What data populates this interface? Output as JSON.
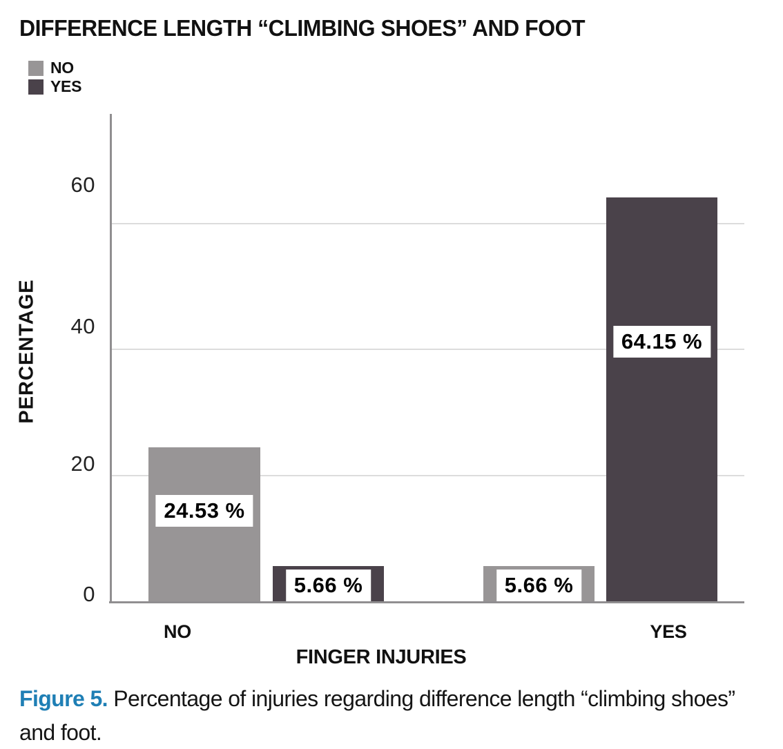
{
  "chart": {
    "title": "DIFFERENCE LENGTH “CLIMBING SHOES” AND FOOT",
    "legend": {
      "items": [
        {
          "label": "NO",
          "color": "#989596"
        },
        {
          "label": "YES",
          "color": "#4a424a"
        }
      ]
    },
    "y_axis": {
      "label": "PERCENTAGE"
    },
    "x_axis": {
      "label": "FINGER INJURIES",
      "categories": [
        "NO",
        "YES"
      ]
    }
  },
  "chart_data": {
    "type": "bar",
    "title": "DIFFERENCE LENGTH “CLIMBING SHOES” AND FOOT",
    "categories": [
      "NO",
      "YES"
    ],
    "series": [
      {
        "name": "NO",
        "color": "#989596",
        "values": [
          24.53,
          5.66
        ],
        "labels": [
          "24.53 %",
          "5.66 %"
        ]
      },
      {
        "name": "YES",
        "color": "#4a424a",
        "values": [
          5.66,
          64.15
        ],
        "labels": [
          "5.66 %",
          "64.15 %"
        ]
      }
    ],
    "xlabel": "FINGER INJURIES",
    "ylabel": "PERCENTAGE",
    "ylim": [
      0,
      77
    ],
    "yticks": [
      0,
      20,
      40,
      60
    ],
    "grid": "horizontal",
    "legend_position": "top-left",
    "colors": {
      "grid": "#dcdcdc",
      "axis": "#908e90",
      "label_box_bg": "#ffffff",
      "label_text": "#000000"
    }
  },
  "caption": {
    "figure_label": "Figure 5.",
    "figure_label_color": "#1f7fb5",
    "text": "Percentage of injuries regarding difference length “climbing shoes” and foot."
  }
}
